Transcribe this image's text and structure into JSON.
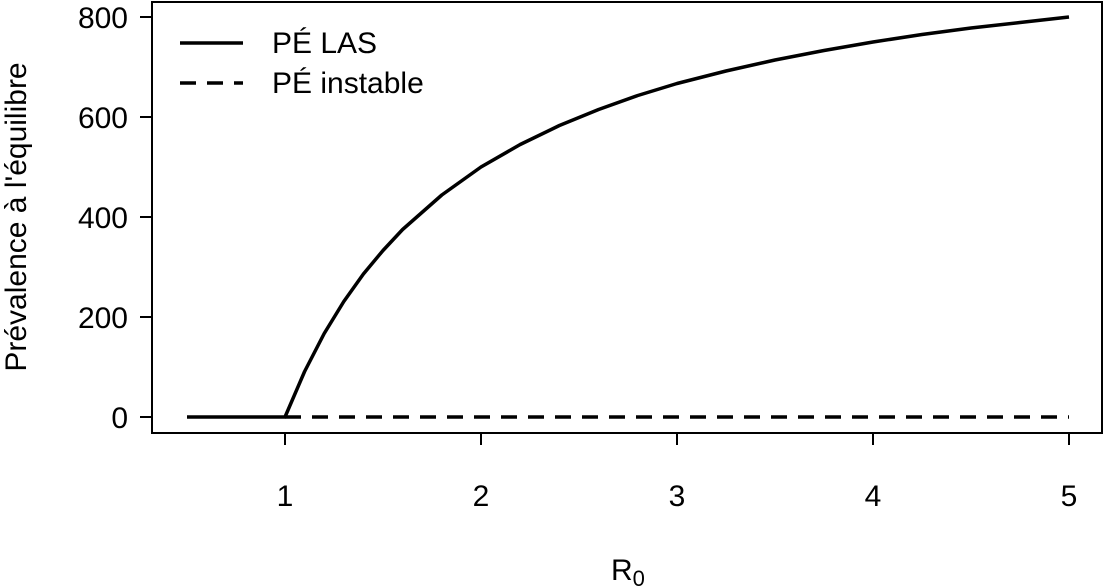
{
  "chart_data": {
    "type": "line",
    "title": "",
    "xlabel_main": "R",
    "xlabel_sub": "0",
    "ylabel": "Prévalence à l'équilibre",
    "xlim": [
      0.4,
      5.2
    ],
    "ylim": [
      -30,
      830
    ],
    "x_ticks": [
      1,
      2,
      3,
      4,
      5
    ],
    "x_tick_labels": [
      "1",
      "2",
      "3",
      "4",
      "5"
    ],
    "y_ticks": [
      0,
      200,
      400,
      600,
      800
    ],
    "y_tick_labels": [
      "0",
      "200",
      "400",
      "600",
      "800"
    ],
    "grid": false,
    "legend_position": "top-left",
    "series": [
      {
        "name": "PÉ LAS",
        "style": "solid",
        "color": "#000000",
        "x": [
          0.5,
          0.6,
          0.7,
          0.8,
          0.9,
          1.0,
          1.1,
          1.2,
          1.3,
          1.4,
          1.5,
          1.6,
          1.8,
          2.0,
          2.2,
          2.4,
          2.6,
          2.8,
          3.0,
          3.25,
          3.5,
          3.75,
          4.0,
          4.25,
          4.5,
          4.75,
          5.0
        ],
        "y": [
          0,
          0,
          0,
          0,
          0,
          0,
          91,
          167,
          231,
          286,
          333,
          375,
          444,
          500,
          545,
          583,
          615,
          643,
          667,
          692,
          714,
          733,
          750,
          765,
          778,
          789,
          800
        ]
      },
      {
        "name": "PÉ instable",
        "style": "dashed",
        "color": "#000000",
        "x": [
          1.0,
          5.0
        ],
        "y": [
          0,
          0
        ]
      }
    ]
  }
}
